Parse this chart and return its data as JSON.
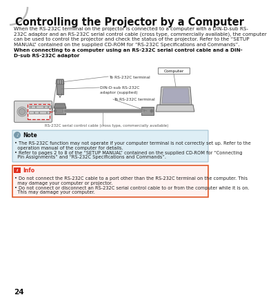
{
  "page_bg": "#ffffff",
  "page_number": "24",
  "title": "Controlling the Projector by a Computer",
  "title_fontsize": 10.5,
  "body_lines": [
    "When the RS-232C terminal on the projector is connected to a computer with a DIN-D-sub RS-",
    "232C adaptor and an RS-232C serial control cable (cross type, commercially available), the computer",
    "can be used to control the projector and check the status of the projector. Refer to the “SETUP",
    "MANUAL” contained on the supplied CD-ROM for “RS-232C Specifications and Commands”."
  ],
  "bold_line1": "When connecting to a computer using an RS-232C serial control cable and a DIN-",
  "bold_line2": "D-sub RS-232C adaptor",
  "lbl_rs232c_top": "To RS-232C terminal",
  "lbl_din_sub1": "DIN-D-sub RS-232C",
  "lbl_din_sub2": "adaptor (supplied)",
  "lbl_computer": "Computer",
  "lbl_rs232c_bot": "To RS-232C terminal",
  "lbl_cable": "RS-232C serial control cable (cross type, commercially available)",
  "note_bg": "#deeef5",
  "note_border": "#99bbcc",
  "note_title": "Note",
  "note_lines": [
    "• The RS-232C function may not operate if your computer terminal is not correctly set up. Refer to the",
    "  operation manual of the computer for details.",
    "• Refer to pages 2 to 8 of the “SETUP MANUAL” contained on the supplied CD-ROM for “Connecting",
    "  Pin Assignments” and “RS-232C Specifications and Commands”."
  ],
  "info_bg": "#fff2f0",
  "info_border": "#e05828",
  "info_title": "Info",
  "info_lines": [
    "• Do not connect the RS-232C cable to a port other than the RS-232C terminal on the computer. This",
    "  may damage your computer or projector.",
    "• Do not connect or disconnect an RS-232C serial control cable to or from the computer while it is on.",
    "  This may damage your computer."
  ],
  "body_fs": 5.2,
  "note_fs": 4.8,
  "lh_body": 7.5,
  "lh_note": 6.8,
  "corner_color": "#bbbbbb"
}
